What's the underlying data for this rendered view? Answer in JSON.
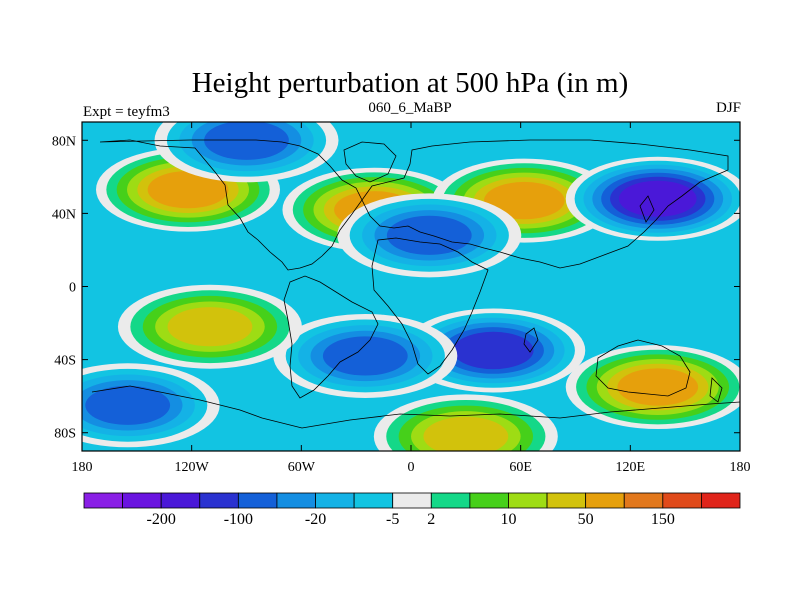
{
  "chart_data": {
    "type": "heatmap",
    "title": "Height perturbation at 500 hPa (in m)",
    "subtitle_left": "Expt = teyfm3",
    "subtitle_center": "060_6_MaBP",
    "subtitle_right": "DJF",
    "x_range": [
      -180,
      180
    ],
    "y_range": [
      -90,
      90
    ],
    "x_ticks": [
      {
        "value": -180,
        "label": "180"
      },
      {
        "value": -120,
        "label": "120W"
      },
      {
        "value": -60,
        "label": "60W"
      },
      {
        "value": 0,
        "label": "0"
      },
      {
        "value": 60,
        "label": "60E"
      },
      {
        "value": 120,
        "label": "120E"
      },
      {
        "value": 180,
        "label": "180"
      }
    ],
    "y_ticks": [
      {
        "value": 80,
        "label": "80N"
      },
      {
        "value": 40,
        "label": "40N"
      },
      {
        "value": 0,
        "label": "0"
      },
      {
        "value": -40,
        "label": "40S"
      },
      {
        "value": -80,
        "label": "80S"
      }
    ],
    "colorbar": {
      "colors": [
        "#8a1fe6",
        "#6a14e0",
        "#4a18d8",
        "#2a32d0",
        "#1460d8",
        "#148ee2",
        "#14b2e6",
        "#12c4e2",
        "#ebebeb",
        "#14d888",
        "#46d01a",
        "#9edc14",
        "#d2c20c",
        "#e6a00c",
        "#e2781c",
        "#e04a1a",
        "#e0241a"
      ],
      "label_positions": [
        2,
        4,
        6,
        8,
        9,
        11,
        13,
        15
      ],
      "labels": [
        "-200",
        "-100",
        "-20",
        "-5",
        "2",
        "10",
        "50",
        "150"
      ]
    },
    "field_features": [
      {
        "name": "north-pacific-high",
        "lon": -122,
        "lat": 53,
        "value": 90
      },
      {
        "name": "north-atlantic-high",
        "lon": -20,
        "lat": 42,
        "value": 80
      },
      {
        "name": "asia-high",
        "lon": 62,
        "lat": 47,
        "value": 55
      },
      {
        "name": "nw-pacific-low",
        "lon": 135,
        "lat": 48,
        "value": -140
      },
      {
        "name": "arctic-low",
        "lon": -90,
        "lat": 80,
        "value": -30
      },
      {
        "name": "e-atlantic-low",
        "lon": 10,
        "lat": 28,
        "value": -25
      },
      {
        "name": "indian-ocean-low",
        "lon": 45,
        "lat": -35,
        "value": -70
      },
      {
        "name": "s-atlantic-low",
        "lon": -25,
        "lat": -38,
        "value": -45
      },
      {
        "name": "s-pacific-low",
        "lon": -155,
        "lat": -65,
        "value": -25
      },
      {
        "name": "s-indian-high",
        "lon": 135,
        "lat": -55,
        "value": 70
      },
      {
        "name": "antarctic-high",
        "lon": 30,
        "lat": -82,
        "value": 40
      },
      {
        "name": "s-pacific-high",
        "lon": -110,
        "lat": -22,
        "value": 45
      }
    ]
  }
}
